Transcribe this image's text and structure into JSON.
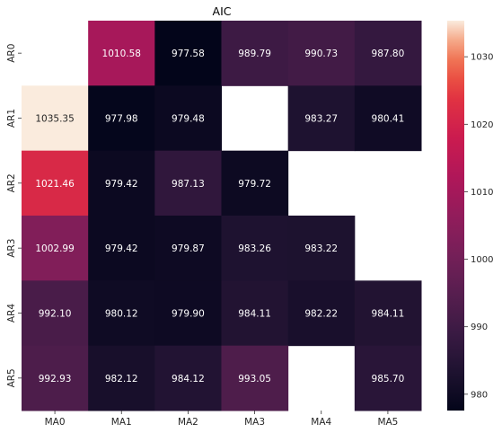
{
  "chart_data": {
    "type": "heatmap",
    "title": "AIC",
    "xlabel": "",
    "ylabel": "",
    "x_categories": [
      "MA0",
      "MA1",
      "MA2",
      "MA3",
      "MA4",
      "MA5"
    ],
    "y_categories": [
      "AR0",
      "AR1",
      "AR2",
      "AR3",
      "AR4",
      "AR5"
    ],
    "values": [
      [
        null,
        1010.58,
        977.58,
        989.79,
        990.73,
        987.8
      ],
      [
        1035.35,
        977.98,
        979.48,
        null,
        983.27,
        980.41
      ],
      [
        1021.46,
        979.42,
        987.13,
        979.72,
        null,
        null
      ],
      [
        1002.99,
        979.42,
        979.87,
        983.26,
        983.22,
        null
      ],
      [
        992.1,
        980.12,
        979.9,
        984.11,
        982.22,
        984.11
      ],
      [
        992.93,
        982.12,
        984.12,
        993.05,
        null,
        985.7
      ]
    ],
    "value_format": "2 decimals",
    "colormap": "rocket",
    "colorbar": {
      "vmin": 977.58,
      "vmax": 1035.35,
      "ticks": [
        980,
        990,
        1000,
        1010,
        1020,
        1030
      ]
    },
    "grid": false,
    "legend": "colorbar-right"
  }
}
